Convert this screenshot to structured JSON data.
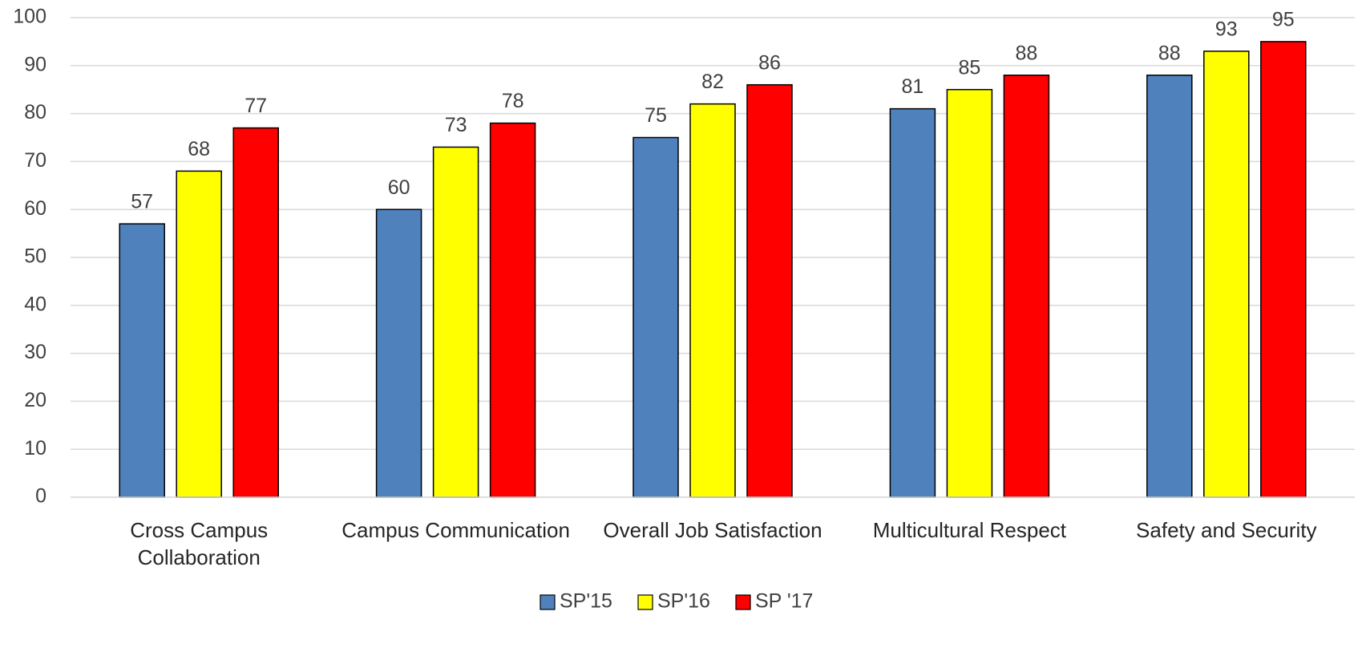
{
  "chart_data": {
    "type": "bar",
    "categories": [
      "Cross Campus Collaboration",
      "Campus Communication",
      "Overall Job Satisfaction",
      "Multicultural Respect",
      "Safety and Security"
    ],
    "series": [
      {
        "name": "SP'15",
        "color": "#4f81bd",
        "values": [
          57,
          60,
          75,
          81,
          88
        ]
      },
      {
        "name": "SP'16",
        "color": "#ffff00",
        "values": [
          68,
          73,
          82,
          85,
          93
        ]
      },
      {
        "name": "SP '17",
        "color": "#ff0000",
        "values": [
          77,
          78,
          86,
          88,
          95
        ]
      }
    ],
    "ylim": [
      0,
      100
    ],
    "yticks": [
      0,
      10,
      20,
      30,
      40,
      50,
      60,
      70,
      80,
      90,
      100
    ],
    "grid": true,
    "legend": "bottom"
  }
}
